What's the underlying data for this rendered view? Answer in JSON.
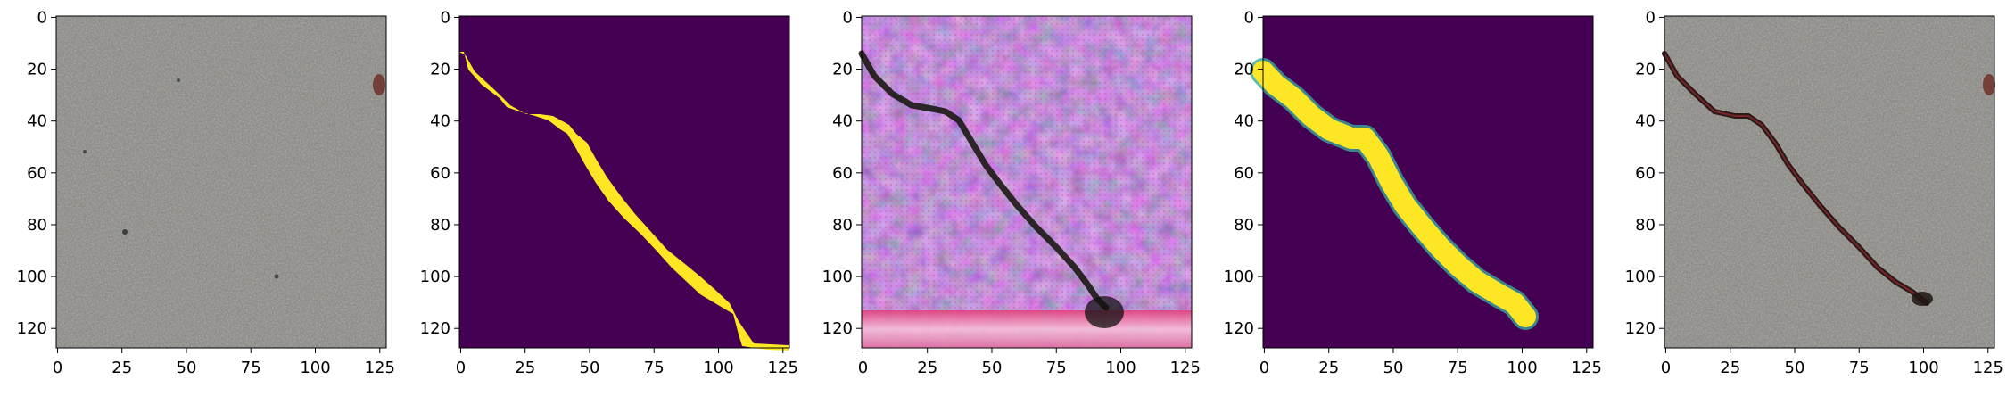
{
  "figure": {
    "panels": [
      {
        "id": "concrete-input",
        "kind": "image",
        "xticks": [
          "0",
          "25",
          "50",
          "75",
          "100",
          "125"
        ],
        "yticks": [
          "0",
          "20",
          "40",
          "60",
          "80",
          "100",
          "120"
        ]
      },
      {
        "id": "ground-truth-mask",
        "kind": "mask",
        "xticks": [
          "0",
          "25",
          "50",
          "75",
          "100",
          "125"
        ],
        "yticks": [
          "0",
          "20",
          "40",
          "60",
          "80",
          "100",
          "120"
        ]
      },
      {
        "id": "generated-image",
        "kind": "image",
        "xticks": [
          "0",
          "25",
          "50",
          "75",
          "100",
          "125"
        ],
        "yticks": [
          "0",
          "20",
          "40",
          "60",
          "80",
          "100",
          "120"
        ]
      },
      {
        "id": "predicted-mask",
        "kind": "mask",
        "xticks": [
          "0",
          "25",
          "50",
          "75",
          "100",
          "125"
        ],
        "yticks": [
          "0",
          "20",
          "40",
          "60",
          "80",
          "100",
          "120"
        ]
      },
      {
        "id": "overlay-result",
        "kind": "image",
        "xticks": [
          "0",
          "25",
          "50",
          "75",
          "100",
          "125"
        ],
        "yticks": [
          "0",
          "20",
          "40",
          "60",
          "80",
          "100",
          "120"
        ]
      }
    ],
    "colors": {
      "mask_background": "#440154",
      "mask_foreground": "#fde725",
      "concrete": "#8a8a86",
      "generated_base": "#5b3a6e"
    }
  }
}
